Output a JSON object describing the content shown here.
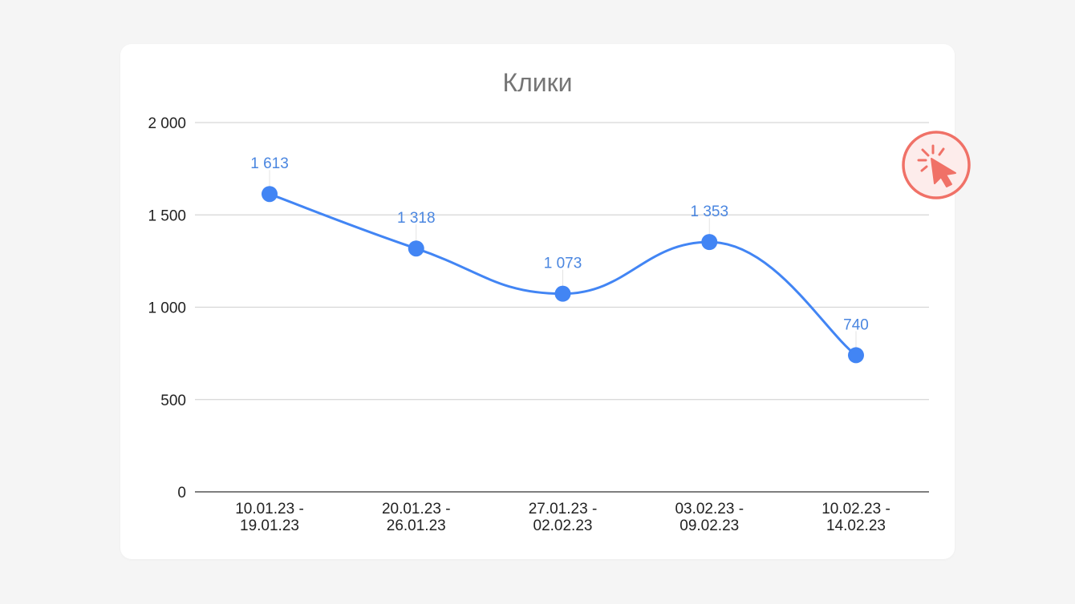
{
  "chart_data": {
    "type": "line",
    "title": "Клики",
    "xlabel": "",
    "ylabel": "",
    "categories": [
      [
        "10.01.23 -",
        "19.01.23"
      ],
      [
        "20.01.23 -",
        "26.01.23"
      ],
      [
        "27.01.23 -",
        "02.02.23"
      ],
      [
        "03.02.23 -",
        "09.02.23"
      ],
      [
        "10.02.23 -",
        "14.02.23"
      ]
    ],
    "series": [
      {
        "values": [
          1613,
          1318,
          1073,
          1353,
          740
        ],
        "data_labels": [
          "1 613",
          "1 318",
          "1 073",
          "1 353",
          "740"
        ],
        "color": "#4285f4",
        "smooth": true
      }
    ],
    "ylim": [
      0,
      2000
    ],
    "yticks": [
      0,
      500,
      1000,
      1500,
      2000
    ],
    "ytick_labels": [
      "0",
      "500",
      "1 000",
      "1 500",
      "2 000"
    ],
    "grid": true,
    "legend": "none"
  },
  "colors": {
    "background": "#f5f5f5",
    "card": "#ffffff",
    "line": "#4285f4",
    "data_label": "#4a86e0",
    "badge": "#f07167"
  },
  "icons": {
    "badge": "click-cursor-icon"
  }
}
